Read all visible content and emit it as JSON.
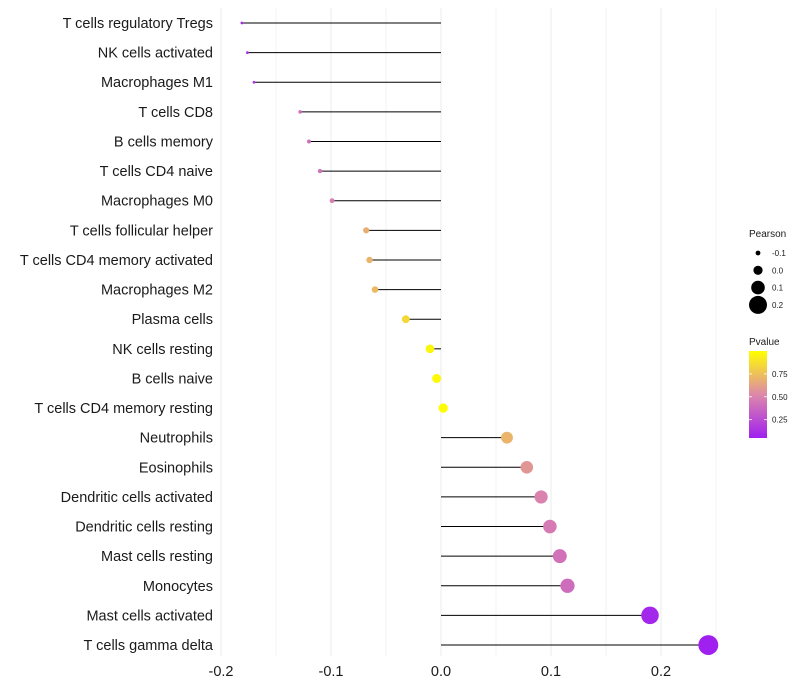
{
  "chart_data": {
    "type": "lollipop",
    "title": "",
    "xlabel": "",
    "ylabel": "",
    "xlim": [
      -0.2,
      0.25
    ],
    "xticks": [
      -0.2,
      -0.1,
      0.0,
      0.1,
      0.2
    ],
    "xtick_labels": [
      "-0.2",
      "-0.1",
      "0.0",
      "0.1",
      "0.2"
    ],
    "grid": true,
    "categories": [
      "T cells regulatory  Tregs",
      "NK cells activated",
      "Macrophages M1",
      "T cells CD8",
      "B cells memory",
      "T cells CD4 naive",
      "Macrophages M0",
      "T cells follicular helper",
      "T cells CD4 memory activated",
      "Macrophages M2",
      "Plasma cells",
      "NK cells resting",
      "B cells naive",
      "T cells CD4 memory resting",
      "Neutrophils",
      "Eosinophils",
      "Dendritic cells activated",
      "Dendritic cells resting",
      "Mast cells resting",
      "Monocytes",
      "Mast cells activated",
      "T cells gamma delta"
    ],
    "values": [
      -0.181,
      -0.176,
      -0.17,
      -0.128,
      -0.12,
      -0.11,
      -0.099,
      -0.068,
      -0.065,
      -0.06,
      -0.032,
      -0.01,
      -0.004,
      0.002,
      0.06,
      0.078,
      0.091,
      0.099,
      0.108,
      0.115,
      0.19,
      0.243
    ],
    "pvalues": [
      0.1,
      0.12,
      0.15,
      0.38,
      0.4,
      0.44,
      0.48,
      0.68,
      0.7,
      0.72,
      0.85,
      0.96,
      0.98,
      0.99,
      0.7,
      0.58,
      0.5,
      0.46,
      0.42,
      0.4,
      0.08,
      0.05
    ],
    "legend": {
      "size_title": "Pearson",
      "size_labels": [
        "-0.1",
        "0.0",
        "0.1",
        "0.2"
      ],
      "size_values": [
        -0.1,
        0.0,
        0.1,
        0.2
      ],
      "color_title": "Pvalue",
      "color_labels": [
        "0.75",
        "0.50",
        "0.25"
      ],
      "color_values": [
        0.75,
        0.5,
        0.25
      ],
      "color_low": "#a020f0",
      "color_mid": "#dd88aa",
      "color_high": "#ffff00",
      "position": "right"
    },
    "segment_color": "#000000",
    "grid_color": "#ebebeb"
  }
}
